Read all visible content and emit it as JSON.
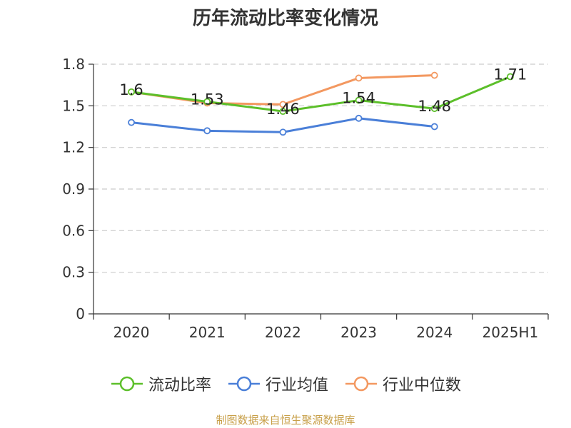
{
  "chart_data": {
    "type": "line",
    "title": "历年流动比率变化情况",
    "categories": [
      "2020",
      "2021",
      "2022",
      "2023",
      "2024",
      "2025H1"
    ],
    "ylim": [
      0,
      1.8
    ],
    "yticks": [
      "0",
      "0.3",
      "0.6",
      "0.9",
      "1.2",
      "1.5",
      "1.8"
    ],
    "grid": true,
    "legend_position": "bottom",
    "series": [
      {
        "name": "流动比率",
        "color": "#5cbf2a",
        "values": [
          1.6,
          1.53,
          1.46,
          1.54,
          1.48,
          1.71
        ],
        "labels": [
          "1.6",
          "1.53",
          "1.46",
          "1.54",
          "1.48",
          "1.71"
        ]
      },
      {
        "name": "行业均值",
        "color": "#4a7fd8",
        "values": [
          1.38,
          1.32,
          1.31,
          1.41,
          1.35,
          null
        ]
      },
      {
        "name": "行业中位数",
        "color": "#f39860",
        "values": [
          1.6,
          1.52,
          1.51,
          1.7,
          1.72,
          null
        ]
      }
    ]
  },
  "source": "制图数据来自恒生聚源数据库"
}
